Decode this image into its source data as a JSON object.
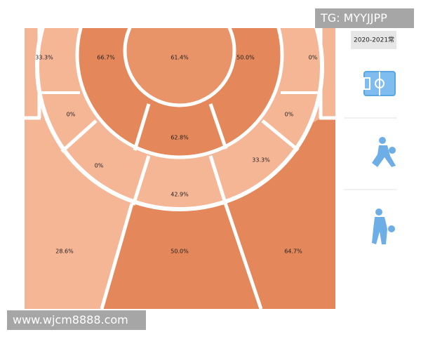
{
  "watermarks": {
    "top": "TG: MYYJJPP",
    "bottom": "www.wjcm8888.com"
  },
  "sidebar": {
    "season": "2020-2021常"
  },
  "zones": [
    {
      "label": "33.3%"
    },
    {
      "label": "66.7%"
    },
    {
      "label": "61.4%"
    },
    {
      "label": "50.0%"
    },
    {
      "label": "0%"
    },
    {
      "label": "0%"
    },
    {
      "label": "62.8%"
    },
    {
      "label": "0%"
    },
    {
      "label": "0%"
    },
    {
      "label": "33.3%"
    },
    {
      "label": "42.9%"
    },
    {
      "label": "28.6%"
    },
    {
      "label": "50.0%"
    },
    {
      "label": "64.7%"
    }
  ]
}
